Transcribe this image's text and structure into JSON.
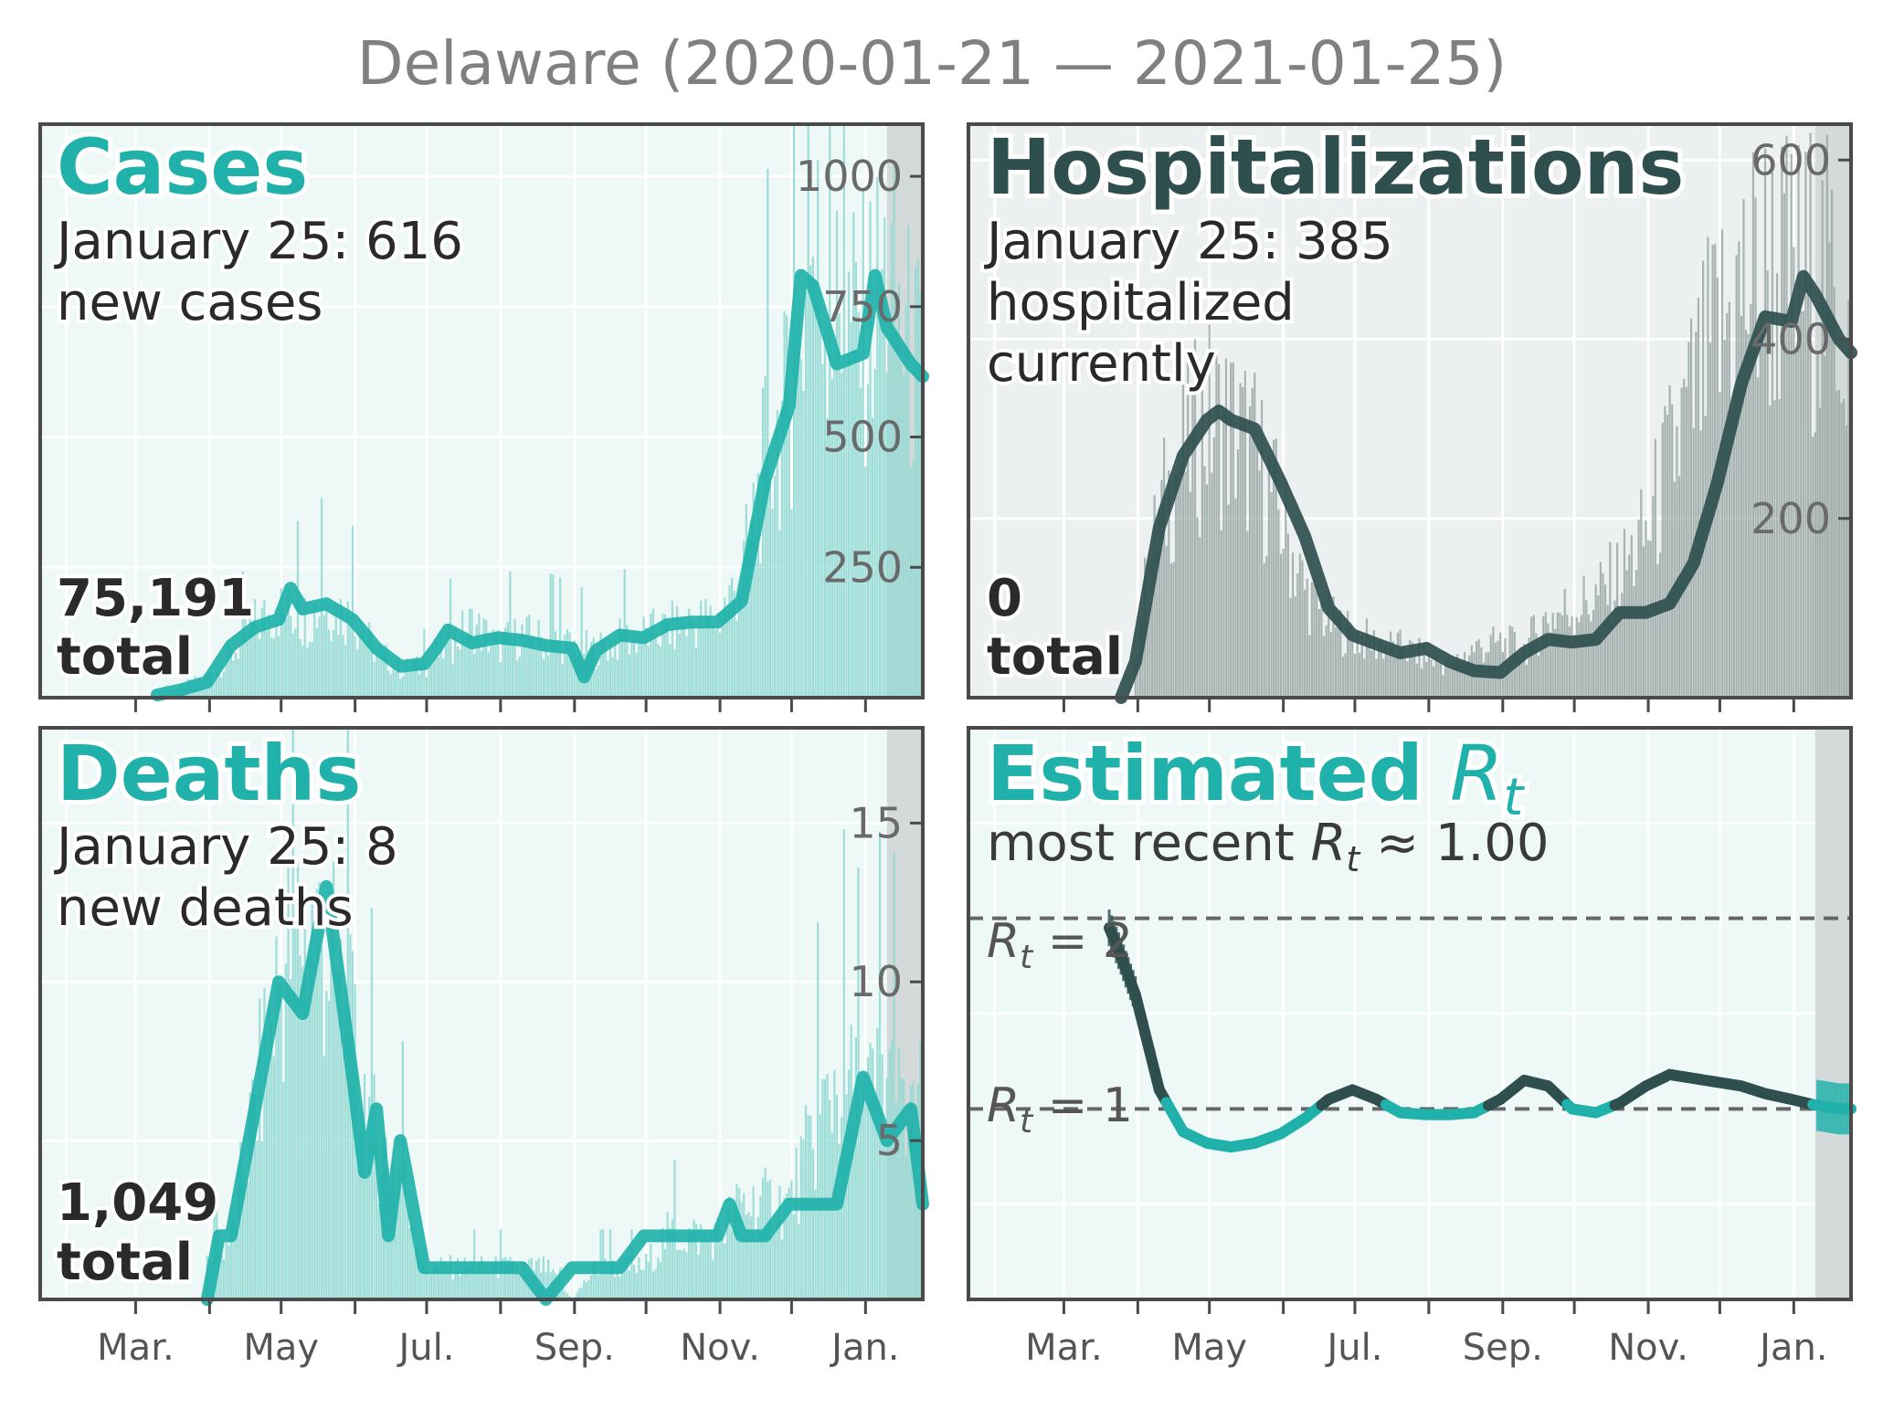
{
  "figure_title": "Delaware (2020-01-21 — 2021-01-25)",
  "months": [
    "Mar.",
    "May",
    "Jul.",
    "Sep.",
    "Nov.",
    "Jan."
  ],
  "colors": {
    "teal": "#20b2aa",
    "teal_light": "#8fd8d2",
    "teal_bg": "#edf8f7",
    "dark": "#2f4f4f",
    "gray_bar": "#9aa8a6",
    "gray_bg": "#edf0f0",
    "shade": "#d4dad9",
    "frame": "#4a4a4a"
  },
  "panels": {
    "cases": {
      "title": "Cases",
      "line1": "January 25: 616",
      "line2": "new cases",
      "total_num": "75,191",
      "total_word": "total"
    },
    "hosp": {
      "title": "Hospitalizations",
      "line1": "January 25: 385",
      "line2": "hospitalized",
      "line3": "currently",
      "total_num": "0",
      "total_word": "total"
    },
    "deaths": {
      "title": "Deaths",
      "line1": "January 25: 8",
      "line2": "new deaths",
      "total_num": "1,049",
      "total_word": "total"
    },
    "rt": {
      "title_text": "Estimated ",
      "title_r": "R",
      "title_sub": "t",
      "recent_text": "most recent ",
      "recent_r": "R",
      "recent_sub": "t",
      "recent_val": " ≈ 1.00",
      "ref2_r": "R",
      "ref2_sub": "t",
      "ref2_val": " = 2",
      "ref1_r": "R",
      "ref1_sub": "t",
      "ref1_val": " = 1"
    }
  },
  "chart_data": [
    {
      "type": "bar",
      "title": "Cases",
      "x_range": [
        "2020-01-21",
        "2021-01-25"
      ],
      "ylim": [
        0,
        1100
      ],
      "yticks": [
        250,
        500,
        750,
        1000
      ],
      "series": [
        {
          "name": "",
          "style": "bars",
          "x": [
            "2020-03-10",
            "2020-03-20",
            "2020-03-31",
            "2020-04-10",
            "2020-04-20",
            "2020-04-30",
            "2020-05-10",
            "2020-05-20",
            "2020-05-31",
            "2020-06-10",
            "2020-06-20",
            "2020-06-30",
            "2020-07-10",
            "2020-07-20",
            "2020-07-31",
            "2020-08-10",
            "2020-08-20",
            "2020-08-31",
            "2020-09-10",
            "2020-09-20",
            "2020-09-30",
            "2020-10-10",
            "2020-10-20",
            "2020-10-31",
            "2020-11-10",
            "2020-11-20",
            "2020-11-30",
            "2020-12-10",
            "2020-12-20",
            "2020-12-31",
            "2021-01-10",
            "2021-01-20",
            "2021-01-25"
          ],
          "y": [
            5,
            20,
            40,
            80,
            140,
            170,
            150,
            180,
            150,
            90,
            55,
            60,
            100,
            140,
            100,
            120,
            110,
            100,
            90,
            110,
            120,
            130,
            145,
            150,
            230,
            450,
            560,
            850,
            720,
            700,
            800,
            650,
            616
          ]
        },
        {
          "name": "",
          "style": "line",
          "x": [
            "2020-03-10",
            "2020-03-20",
            "2020-03-31",
            "2020-04-10",
            "2020-04-20",
            "2020-04-30",
            "2020-05-05",
            "2020-05-10",
            "2020-05-20",
            "2020-05-31",
            "2020-06-10",
            "2020-06-20",
            "2020-06-30",
            "2020-07-05",
            "2020-07-10",
            "2020-07-20",
            "2020-07-31",
            "2020-08-10",
            "2020-08-20",
            "2020-08-31",
            "2020-09-05",
            "2020-09-10",
            "2020-09-20",
            "2020-09-30",
            "2020-10-10",
            "2020-10-20",
            "2020-10-31",
            "2020-11-10",
            "2020-11-20",
            "2020-11-30",
            "2020-12-05",
            "2020-12-10",
            "2020-12-20",
            "2020-12-31",
            "2021-01-05",
            "2021-01-10",
            "2021-01-20",
            "2021-01-25"
          ],
          "y": [
            5,
            15,
            30,
            100,
            135,
            150,
            210,
            170,
            180,
            150,
            95,
            60,
            65,
            95,
            130,
            105,
            115,
            110,
            100,
            95,
            40,
            90,
            120,
            115,
            140,
            145,
            145,
            185,
            420,
            560,
            810,
            790,
            640,
            660,
            810,
            710,
            640,
            616
          ]
        }
      ]
    },
    {
      "type": "bar",
      "title": "Hospitalizations",
      "x_range": [
        "2020-01-21",
        "2021-01-25"
      ],
      "ylim": [
        0,
        640
      ],
      "yticks": [
        200,
        400,
        600
      ],
      "series": [
        {
          "name": "",
          "style": "bars",
          "x": [
            "2020-03-31",
            "2020-04-10",
            "2020-04-20",
            "2020-04-30",
            "2020-05-10",
            "2020-05-20",
            "2020-05-31",
            "2020-06-10",
            "2020-06-20",
            "2020-06-30",
            "2020-07-10",
            "2020-07-20",
            "2020-07-31",
            "2020-08-10",
            "2020-08-20",
            "2020-08-31",
            "2020-09-10",
            "2020-09-20",
            "2020-09-30",
            "2020-10-10",
            "2020-10-20",
            "2020-10-31",
            "2020-11-10",
            "2020-11-20",
            "2020-11-30",
            "2020-12-10",
            "2020-12-20",
            "2020-12-31",
            "2021-01-10",
            "2021-01-20",
            "2021-01-25"
          ],
          "y": [
            60,
            200,
            270,
            310,
            300,
            270,
            200,
            120,
            85,
            70,
            60,
            55,
            45,
            35,
            55,
            60,
            55,
            90,
            100,
            110,
            135,
            180,
            260,
            330,
            400,
            450,
            480,
            460,
            470,
            440,
            385
          ]
        },
        {
          "name": "",
          "style": "line",
          "x": [
            "2020-03-25",
            "2020-03-31",
            "2020-04-10",
            "2020-04-20",
            "2020-04-30",
            "2020-05-05",
            "2020-05-10",
            "2020-05-20",
            "2020-05-31",
            "2020-06-10",
            "2020-06-20",
            "2020-06-30",
            "2020-07-10",
            "2020-07-20",
            "2020-07-31",
            "2020-08-10",
            "2020-08-20",
            "2020-08-31",
            "2020-09-10",
            "2020-09-20",
            "2020-09-30",
            "2020-10-10",
            "2020-10-20",
            "2020-10-31",
            "2020-11-10",
            "2020-11-20",
            "2020-11-30",
            "2020-12-10",
            "2020-12-20",
            "2020-12-31",
            "2021-01-05",
            "2021-01-10",
            "2021-01-20",
            "2021-01-25"
          ],
          "y": [
            0,
            40,
            190,
            270,
            310,
            320,
            310,
            300,
            240,
            180,
            100,
            70,
            60,
            50,
            55,
            40,
            30,
            28,
            50,
            65,
            62,
            65,
            95,
            95,
            105,
            150,
            240,
            350,
            425,
            420,
            470,
            450,
            400,
            385
          ]
        }
      ]
    },
    {
      "type": "bar",
      "title": "Deaths",
      "x_range": [
        "2020-01-21",
        "2021-01-25"
      ],
      "ylim": [
        0,
        18
      ],
      "yticks": [
        5,
        10,
        15
      ],
      "series": [
        {
          "name": "",
          "style": "bars",
          "x": [
            "2020-03-31",
            "2020-04-10",
            "2020-04-20",
            "2020-04-30",
            "2020-05-10",
            "2020-05-20",
            "2020-05-31",
            "2020-06-10",
            "2020-06-20",
            "2020-06-30",
            "2020-07-10",
            "2020-07-20",
            "2020-07-31",
            "2020-08-10",
            "2020-08-20",
            "2020-08-31",
            "2020-09-10",
            "2020-09-20",
            "2020-09-30",
            "2020-10-10",
            "2020-10-20",
            "2020-10-31",
            "2020-11-10",
            "2020-11-20",
            "2020-11-30",
            "2020-12-10",
            "2020-12-20",
            "2020-12-31",
            "2021-01-10",
            "2021-01-20",
            "2021-01-25"
          ],
          "y": [
            1,
            2,
            6,
            10,
            12,
            11,
            8,
            5,
            4,
            1,
            1,
            1,
            1,
            1,
            1,
            0,
            1,
            1,
            1,
            2,
            2,
            2,
            3,
            3,
            3,
            5,
            7,
            6,
            7,
            5,
            8
          ]
        },
        {
          "name": "",
          "style": "line",
          "x": [
            "2020-03-31",
            "2020-04-05",
            "2020-04-10",
            "2020-04-20",
            "2020-04-30",
            "2020-05-10",
            "2020-05-20",
            "2020-05-31",
            "2020-06-05",
            "2020-06-10",
            "2020-06-15",
            "2020-06-20",
            "2020-06-30",
            "2020-07-10",
            "2020-07-20",
            "2020-07-31",
            "2020-08-10",
            "2020-08-20",
            "2020-08-31",
            "2020-09-10",
            "2020-09-20",
            "2020-09-30",
            "2020-10-10",
            "2020-10-20",
            "2020-10-31",
            "2020-11-05",
            "2020-11-10",
            "2020-11-20",
            "2020-11-30",
            "2020-12-10",
            "2020-12-20",
            "2020-12-31",
            "2021-01-10",
            "2021-01-20",
            "2021-01-25"
          ],
          "y": [
            0,
            2,
            2,
            6,
            10,
            9,
            13,
            7,
            4,
            6,
            2,
            5,
            1,
            1,
            1,
            1,
            1,
            0,
            1,
            1,
            1,
            2,
            2,
            2,
            2,
            3,
            2,
            2,
            3,
            3,
            3,
            7,
            5,
            6,
            3
          ]
        }
      ]
    },
    {
      "type": "line",
      "title": "Estimated R_t",
      "x_range": [
        "2020-01-21",
        "2021-01-25"
      ],
      "ylim": [
        0,
        3
      ],
      "reference_lines": [
        1,
        2
      ],
      "series": [
        {
          "name": "",
          "style": "line",
          "x": [
            "2020-03-20",
            "2020-03-25",
            "2020-03-31",
            "2020-04-05",
            "2020-04-10",
            "2020-04-20",
            "2020-04-30",
            "2020-05-10",
            "2020-05-20",
            "2020-05-31",
            "2020-06-10",
            "2020-06-20",
            "2020-06-30",
            "2020-07-10",
            "2020-07-20",
            "2020-07-31",
            "2020-08-10",
            "2020-08-20",
            "2020-08-31",
            "2020-09-10",
            "2020-09-20",
            "2020-09-30",
            "2020-10-10",
            "2020-10-20",
            "2020-10-31",
            "2020-11-10",
            "2020-11-20",
            "2020-11-30",
            "2020-12-10",
            "2020-12-20",
            "2020-12-31",
            "2021-01-10",
            "2021-01-20",
            "2021-01-25"
          ],
          "y": [
            1.95,
            1.8,
            1.6,
            1.35,
            1.1,
            0.88,
            0.82,
            0.8,
            0.82,
            0.87,
            0.95,
            1.05,
            1.1,
            1.05,
            0.98,
            0.97,
            0.97,
            0.98,
            1.05,
            1.15,
            1.12,
            1.0,
            0.98,
            1.03,
            1.12,
            1.18,
            1.16,
            1.14,
            1.12,
            1.08,
            1.05,
            1.02,
            1.0,
            1.0
          ]
        }
      ]
    }
  ]
}
